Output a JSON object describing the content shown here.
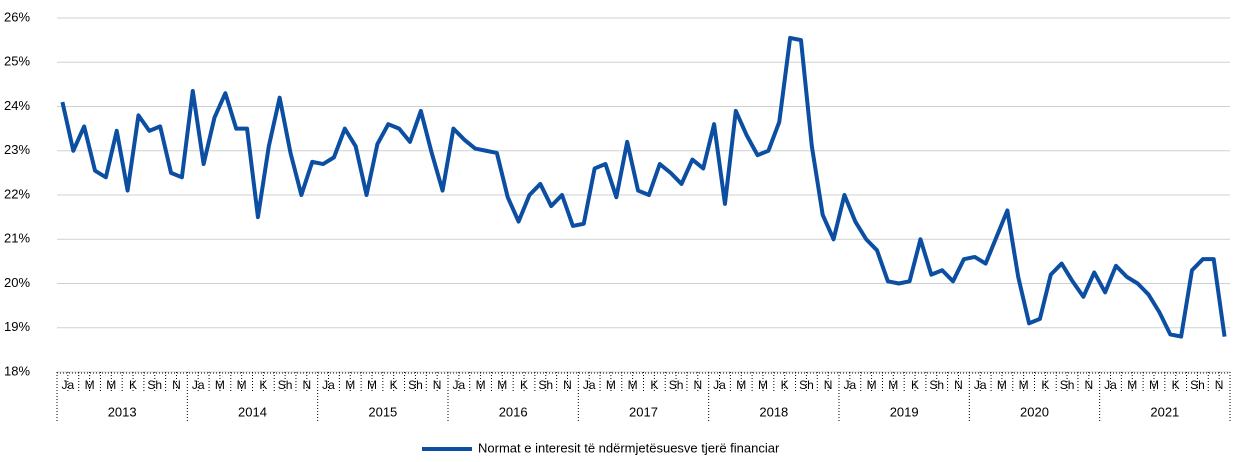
{
  "chart_data": {
    "type": "line",
    "categories": [
      "Ja",
      null,
      "M",
      null,
      "M",
      null,
      "K",
      null,
      "Sh",
      null,
      "N",
      null,
      "Ja",
      null,
      "M",
      null,
      "M",
      null,
      "K",
      null,
      "Sh",
      null,
      "N",
      null,
      "Ja",
      null,
      "M",
      null,
      "M",
      null,
      "K",
      null,
      "Sh",
      null,
      "N",
      null,
      "Ja",
      null,
      "M",
      null,
      "M",
      null,
      "K",
      null,
      "Sh",
      null,
      "N",
      null,
      "Ja",
      null,
      "M",
      null,
      "M",
      null,
      "K",
      null,
      "Sh",
      null,
      "N",
      null,
      "Ja",
      null,
      "M",
      null,
      "M",
      null,
      "K",
      null,
      "Sh",
      null,
      "N",
      null,
      "Ja",
      null,
      "M",
      null,
      "M",
      null,
      "K",
      null,
      "Sh",
      null,
      "N",
      null,
      "Ja",
      null,
      "M",
      null,
      "M",
      null,
      "K",
      null,
      "Sh",
      null,
      "N",
      null,
      "Ja",
      null,
      "M",
      null,
      "M",
      null,
      "K",
      null,
      "Sh",
      null,
      "N",
      null
    ],
    "years": [
      "2013",
      "2014",
      "2015",
      "2016",
      "2017",
      "2018",
      "2019",
      "2020",
      "2021"
    ],
    "series": [
      {
        "name": "Normat e interesit të ndërmjetësuesve tjerë financiar",
        "color": "#0b4ea2",
        "values": [
          24.1,
          23.0,
          23.55,
          22.55,
          22.4,
          23.45,
          22.1,
          23.8,
          23.45,
          23.55,
          22.5,
          22.4,
          24.35,
          22.7,
          23.75,
          24.3,
          23.5,
          23.5,
          21.5,
          23.1,
          24.2,
          22.95,
          22.0,
          22.75,
          22.7,
          22.85,
          23.5,
          23.1,
          22.0,
          23.15,
          23.6,
          23.5,
          23.2,
          23.9,
          22.95,
          22.1,
          23.5,
          23.25,
          23.05,
          23.0,
          22.95,
          21.95,
          21.4,
          22.0,
          22.25,
          21.75,
          22.0,
          21.3,
          21.35,
          22.6,
          22.7,
          21.95,
          23.2,
          22.1,
          22.0,
          22.7,
          22.5,
          22.25,
          22.8,
          22.6,
          23.6,
          21.8,
          23.9,
          23.35,
          22.9,
          23.0,
          23.65,
          25.55,
          25.5,
          23.1,
          21.55,
          21.0,
          22.0,
          21.4,
          21.0,
          20.75,
          20.05,
          20.0,
          20.05,
          21.0,
          20.2,
          20.3,
          20.05,
          20.55,
          20.6,
          20.45,
          21.05,
          21.65,
          20.15,
          19.1,
          19.2,
          20.2,
          20.45,
          20.05,
          19.7,
          20.25,
          19.8,
          20.4,
          20.15,
          20.0,
          19.75,
          19.35,
          18.85,
          18.8,
          20.3,
          20.55,
          20.55,
          18.8
        ]
      }
    ],
    "ylim": [
      18,
      26
    ],
    "yticks": [
      {
        "value": 18,
        "label": "18%"
      },
      {
        "value": 19,
        "label": "19%"
      },
      {
        "value": 20,
        "label": "20%"
      },
      {
        "value": 21,
        "label": "21%"
      },
      {
        "value": 22,
        "label": "22%"
      },
      {
        "value": 23,
        "label": "23%"
      },
      {
        "value": 24,
        "label": "24%"
      },
      {
        "value": 25,
        "label": "25%"
      },
      {
        "value": 26,
        "label": "26%"
      }
    ],
    "grid": true,
    "legend": "bottom"
  }
}
